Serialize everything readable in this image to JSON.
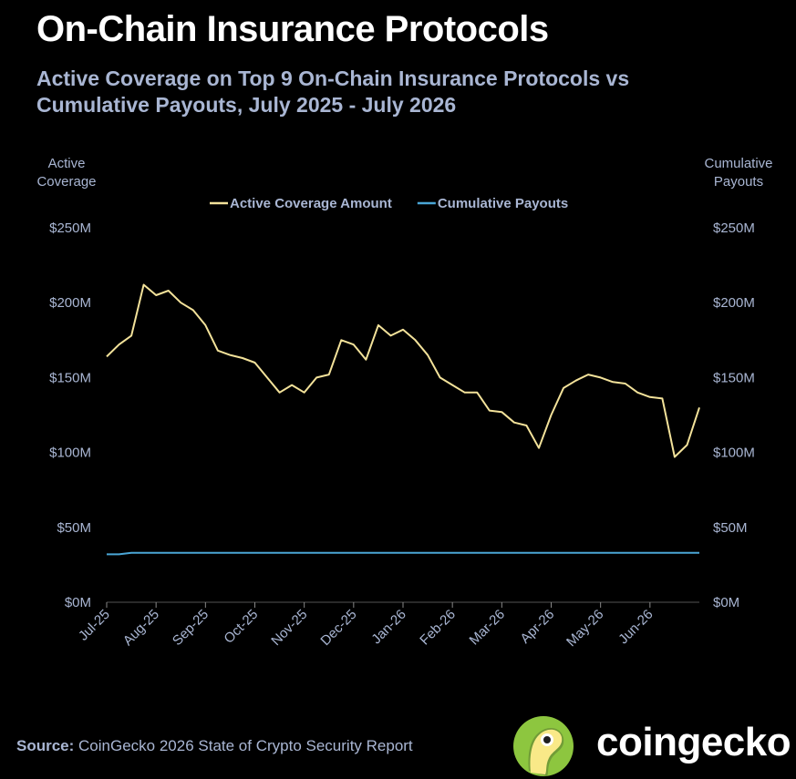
{
  "chart_data": {
    "type": "line",
    "title": "On-Chain Insurance Protocols",
    "subtitle": "Active Coverage on Top 9 On-Chain Insurance Protocols vs Cumulative Payouts, July 2025 - July 2026",
    "y_label": "Active Coverage",
    "y2_label": "Cumulative Payouts",
    "categories": [
      "Jul-25",
      null,
      null,
      null,
      "Aug-25",
      null,
      null,
      null,
      "Sep-25",
      null,
      null,
      null,
      "Oct-25",
      null,
      null,
      null,
      "Nov-25",
      null,
      null,
      null,
      "Dec-25",
      null,
      null,
      null,
      "Jan-26",
      null,
      null,
      null,
      "Feb-26",
      null,
      null,
      null,
      "Mar-26",
      null,
      null,
      null,
      "Apr-26",
      null,
      null,
      null,
      "May-26",
      null,
      null,
      null,
      "Jun-26",
      null,
      null,
      null,
      null
    ],
    "series": [
      {
        "name": "Active Coverage Amount",
        "color": "#f3e29a",
        "axis": "y",
        "values": [
          164,
          172,
          178,
          212,
          205,
          208,
          200,
          195,
          185,
          168,
          165,
          163,
          160,
          150,
          140,
          145,
          140,
          150,
          152,
          175,
          172,
          162,
          185,
          178,
          182,
          175,
          165,
          150,
          145,
          140,
          140,
          128,
          127,
          120,
          118,
          103,
          125,
          143,
          148,
          152,
          150,
          147,
          146,
          140,
          137,
          136,
          97,
          105,
          130
        ]
      },
      {
        "name": "Cumulative Payouts",
        "color": "#4aa6d6",
        "axis": "y2",
        "values": [
          32,
          32,
          33,
          33,
          33,
          33,
          33,
          33,
          33,
          33,
          33,
          33,
          33,
          33,
          33,
          33,
          33,
          33,
          33,
          33,
          33,
          33,
          33,
          33,
          33,
          33,
          33,
          33,
          33,
          33,
          33,
          33,
          33,
          33,
          33,
          33,
          33,
          33,
          33,
          33,
          33,
          33,
          33,
          33,
          33,
          33,
          33,
          33,
          33
        ]
      }
    ],
    "ylim": [
      0,
      250
    ],
    "yticks": [
      {
        "value": 0,
        "label": "$0M"
      },
      {
        "value": 50,
        "label": "$50M"
      },
      {
        "value": 100,
        "label": "$100M"
      },
      {
        "value": 150,
        "label": "$150M"
      },
      {
        "value": 200,
        "label": "$200M"
      },
      {
        "value": 250,
        "label": "$250M"
      }
    ],
    "y2lim": [
      0,
      250
    ],
    "y2ticks": [
      {
        "value": 0,
        "label": "$0M"
      },
      {
        "value": 50,
        "label": "$50M"
      },
      {
        "value": 100,
        "label": "$100M"
      },
      {
        "value": 150,
        "label": "$150M"
      },
      {
        "value": 200,
        "label": "$200M"
      },
      {
        "value": 250,
        "label": "$250M"
      }
    ],
    "grid": false,
    "legend": "top",
    "source_label": "Source:",
    "source": "CoinGecko 2026 State of Crypto Security Report",
    "brand": "coingecko"
  }
}
